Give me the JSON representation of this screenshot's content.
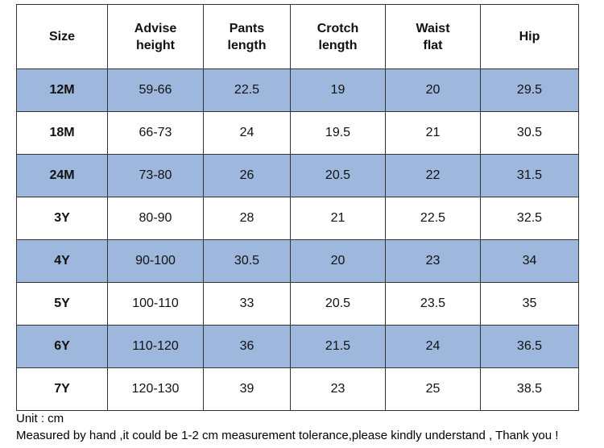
{
  "table": {
    "header": [
      "Size",
      "Advise\nheight",
      "Pants\nlength",
      "Crotch\nlength",
      "Waist\nflat",
      "Hip"
    ],
    "rows": [
      [
        "12M",
        "59-66",
        22.5,
        19,
        20,
        29.5
      ],
      [
        "18M",
        "66-73",
        24,
        19.5,
        21,
        30.5
      ],
      [
        "24M",
        "73-80",
        26,
        20.5,
        22,
        31.5
      ],
      [
        "3Y",
        "80-90",
        28,
        21,
        22.5,
        32.5
      ],
      [
        "4Y",
        "90-100",
        30.5,
        20,
        23,
        34
      ],
      [
        "5Y",
        "100-110",
        33,
        20.5,
        23.5,
        35
      ],
      [
        "6Y",
        "110-120",
        36,
        21.5,
        24,
        36.5
      ],
      [
        "7Y",
        "120-130",
        39,
        23,
        25,
        38.5
      ]
    ]
  },
  "notes": [
    "Unit : cm",
    "Measured by hand ,it could be 1-2 cm measurement tolerance,please kindly understand , Thank you !"
  ]
}
